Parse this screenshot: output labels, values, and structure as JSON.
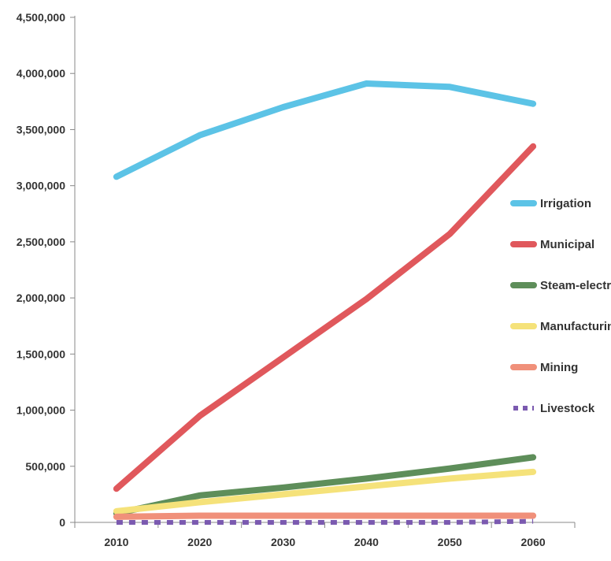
{
  "chart_data": {
    "type": "line",
    "title": "",
    "xlabel": "",
    "ylabel": "",
    "x": [
      2010,
      2020,
      2030,
      2040,
      2050,
      2060
    ],
    "x_tick_labels": [
      "2010",
      "2020",
      "2030",
      "2040",
      "2050",
      "2060"
    ],
    "ylim": [
      0,
      4500000
    ],
    "y_ticks": [
      0,
      500000,
      1000000,
      1500000,
      2000000,
      2500000,
      3000000,
      3500000,
      4000000,
      4500000
    ],
    "y_tick_labels": [
      "0",
      "500,000",
      "1,000,000",
      "1,500,000",
      "2,000,000",
      "2,500,000",
      "3,000,000",
      "3,500,000",
      "4,000,000",
      "4,500,000"
    ],
    "grid": false,
    "legend_position": "right",
    "series": [
      {
        "name": "Irrigation",
        "color": "#5cc3e6",
        "dashed": false,
        "values": [
          3080000,
          3450000,
          3700000,
          3910000,
          3880000,
          3730000
        ]
      },
      {
        "name": "Municipal",
        "color": "#e0585c",
        "dashed": false,
        "values": [
          300000,
          950000,
          1470000,
          1990000,
          2570000,
          3350000
        ]
      },
      {
        "name": "Steam-electric",
        "color": "#5e8e5a",
        "dashed": false,
        "values": [
          80000,
          240000,
          310000,
          390000,
          480000,
          580000
        ]
      },
      {
        "name": "Manufacturing",
        "color": "#f5e27a",
        "dashed": false,
        "values": [
          100000,
          180000,
          250000,
          320000,
          390000,
          450000
        ]
      },
      {
        "name": "Mining",
        "color": "#f0907a",
        "dashed": false,
        "values": [
          50000,
          60000,
          60000,
          60000,
          60000,
          60000
        ]
      },
      {
        "name": "Livestock",
        "color": "#7b5ab0",
        "dashed": true,
        "values": [
          0,
          0,
          0,
          0,
          0,
          10000
        ]
      }
    ]
  }
}
